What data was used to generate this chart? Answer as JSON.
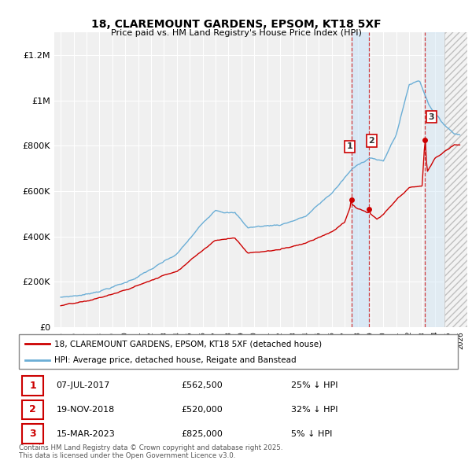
{
  "title": "18, CLAREMOUNT GARDENS, EPSOM, KT18 5XF",
  "subtitle": "Price paid vs. HM Land Registry's House Price Index (HPI)",
  "ylim": [
    0,
    1300000
  ],
  "yticks": [
    0,
    200000,
    400000,
    600000,
    800000,
    1000000,
    1200000
  ],
  "ytick_labels": [
    "£0",
    "£200K",
    "£400K",
    "£600K",
    "£800K",
    "£1M",
    "£1.2M"
  ],
  "hpi_color": "#6baed6",
  "price_color": "#cc0000",
  "transactions": [
    {
      "date_year": 2017.52,
      "price": 562500,
      "label": "1",
      "pct": "25% ↓ HPI",
      "date_str": "07-JUL-2017"
    },
    {
      "date_year": 2018.89,
      "price": 520000,
      "label": "2",
      "pct": "32% ↓ HPI",
      "date_str": "19-NOV-2018"
    },
    {
      "date_year": 2023.21,
      "price": 825000,
      "label": "3",
      "pct": "5% ↓ HPI",
      "date_str": "15-MAR-2023"
    }
  ],
  "legend_entries": [
    {
      "label": "18, CLAREMOUNT GARDENS, EPSOM, KT18 5XF (detached house)",
      "color": "#cc0000"
    },
    {
      "label": "HPI: Average price, detached house, Reigate and Banstead",
      "color": "#6baed6"
    }
  ],
  "footnote": "Contains HM Land Registry data © Crown copyright and database right 2025.\nThis data is licensed under the Open Government Licence v3.0.",
  "chart_bg": "#f0f0f0",
  "future_start": 2024.75,
  "xlim": [
    1994.5,
    2026.5
  ]
}
